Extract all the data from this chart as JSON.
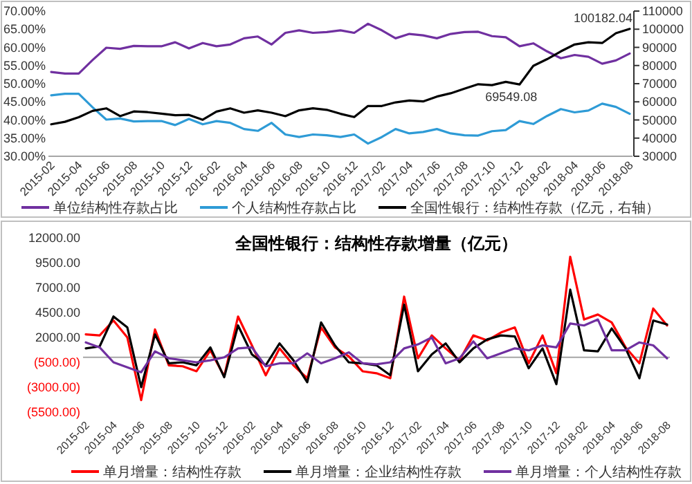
{
  "chart_data": [
    {
      "type": "line",
      "categories": [
        "2015-02",
        null,
        "2015-04",
        null,
        "2015-06",
        null,
        "2015-08",
        null,
        "2015-10",
        null,
        "2015-12",
        null,
        "2016-02",
        null,
        "2016-04",
        null,
        "2016-06",
        null,
        "2016-08",
        null,
        "2016-10",
        null,
        "2016-12",
        null,
        "2017-02",
        null,
        "2017-04",
        null,
        "2017-06",
        null,
        "2017-08",
        null,
        "2017-10",
        null,
        "2017-12",
        null,
        "2018-02",
        null,
        "2018-04",
        null,
        "2018-06",
        null,
        "2018-08"
      ],
      "series": [
        {
          "name": "单位结构性存款占比",
          "color": "#7030a0",
          "values": [
            53.2,
            52.8,
            52.8,
            56.5,
            59.9,
            59.6,
            60.4,
            60.3,
            60.3,
            61.4,
            59.7,
            61.2,
            60.3,
            60.8,
            62.5,
            63.0,
            60.8,
            64.0,
            64.7,
            64.0,
            64.2,
            64.7,
            64.0,
            66.5,
            64.7,
            62.5,
            63.7,
            63.3,
            62.5,
            63.7,
            64.2,
            64.3,
            63.1,
            62.8,
            60.3,
            61.1,
            58.9,
            57.0,
            57.9,
            57.4,
            55.5,
            56.4,
            58.3
          ]
        },
        {
          "name": "个人结构性存款占比",
          "color": "#2e9bd6",
          "values": [
            46.8,
            47.2,
            47.2,
            43.5,
            40.1,
            40.4,
            39.6,
            39.7,
            39.7,
            38.6,
            40.3,
            38.8,
            39.7,
            39.2,
            37.5,
            37.0,
            39.2,
            36.0,
            35.3,
            36.0,
            35.8,
            35.3,
            36.0,
            33.5,
            35.3,
            37.5,
            36.3,
            36.7,
            37.5,
            36.3,
            35.8,
            35.7,
            36.9,
            37.2,
            39.7,
            38.9,
            41.1,
            43.0,
            42.1,
            42.6,
            44.5,
            43.6,
            41.7
          ]
        },
        {
          "name": "全国性银行：结构性存款（亿元，右轴）",
          "color": "#000000",
          "axis": "y2",
          "values": [
            47600,
            49000,
            51500,
            55000,
            56400,
            52100,
            54700,
            54300,
            53500,
            52600,
            52800,
            50100,
            54600,
            56400,
            54000,
            55300,
            54000,
            52100,
            55300,
            56400,
            55600,
            53400,
            51600,
            57700,
            57700,
            59700,
            60700,
            60200,
            62900,
            64700,
            67200,
            69700,
            69200,
            71000,
            69549.08,
            79800,
            83500,
            87800,
            91600,
            92800,
            92400,
            97800,
            100182.04
          ],
          "value_labels": [
            null,
            null,
            null,
            null,
            null,
            null,
            null,
            null,
            null,
            null,
            null,
            null,
            null,
            null,
            null,
            null,
            null,
            null,
            null,
            null,
            null,
            null,
            null,
            null,
            null,
            null,
            null,
            null,
            null,
            null,
            null,
            null,
            null,
            null,
            "69549.08",
            null,
            null,
            null,
            null,
            null,
            null,
            null,
            "100182.04"
          ]
        }
      ],
      "ylim": [
        30,
        70
      ],
      "yticks": [
        {
          "value": 30,
          "label": "30.00%"
        },
        {
          "value": 35,
          "label": "35.00%"
        },
        {
          "value": 40,
          "label": "40.00%"
        },
        {
          "value": 45,
          "label": "45.00%"
        },
        {
          "value": 50,
          "label": "50.00%"
        },
        {
          "value": 55,
          "label": "55.00%"
        },
        {
          "value": 60,
          "label": "60.00%"
        },
        {
          "value": 65,
          "label": "65.00%"
        },
        {
          "value": 70,
          "label": "70.00%"
        }
      ],
      "y2lim": [
        30000,
        110000
      ],
      "y2ticks": [
        30000,
        40000,
        50000,
        60000,
        70000,
        80000,
        90000,
        100000,
        110000
      ],
      "legend": "bottom"
    },
    {
      "type": "line",
      "title": "全国性银行：结构性存款增量（亿元）",
      "categories": [
        "2015-02",
        null,
        "2015-04",
        null,
        "2015-06",
        null,
        "2015-08",
        null,
        "2015-10",
        null,
        "2015-12",
        null,
        "2016-02",
        null,
        "2016-04",
        null,
        "2016-06",
        null,
        "2016-08",
        null,
        "2016-10",
        null,
        "2016-12",
        null,
        "2017-02",
        null,
        "2017-04",
        null,
        "2017-06",
        null,
        "2017-08",
        null,
        "2017-10",
        null,
        "2017-12",
        null,
        "2018-02",
        null,
        "2018-04",
        null,
        "2018-06",
        null,
        "2018-08"
      ],
      "series": [
        {
          "name": "单月增量：结构性存款",
          "color": "#ff0000",
          "values": [
            2300,
            2200,
            3700,
            2000,
            -4300,
            2800,
            -800,
            -900,
            -1400,
            700,
            -1900,
            4100,
            1200,
            -1800,
            900,
            -800,
            -2100,
            3000,
            1000,
            100,
            -1400,
            -1600,
            -2100,
            6100,
            -100,
            2200,
            900,
            -300,
            2200,
            1700,
            2500,
            3000,
            -600,
            2200,
            -1600,
            10100,
            3800,
            4300,
            3500,
            1000,
            -600,
            4900,
            3200
          ]
        },
        {
          "name": "单月增量：企业结构性存款",
          "color": "#000000",
          "values": [
            900,
            1100,
            4100,
            3000,
            -3000,
            2300,
            -600,
            -500,
            -800,
            1000,
            -2000,
            3200,
            300,
            -800,
            1400,
            -300,
            -2500,
            3500,
            1200,
            -500,
            -600,
            -800,
            -1800,
            5300,
            -1400,
            300,
            1400,
            -500,
            900,
            1800,
            2200,
            2100,
            -1100,
            900,
            -2700,
            6800,
            700,
            600,
            2900,
            900,
            -2100,
            3700,
            3300
          ]
        },
        {
          "name": "单月增量：个人结构性存款",
          "color": "#7030a0",
          "values": [
            1500,
            1000,
            -500,
            -1000,
            -1500,
            600,
            -100,
            -300,
            -500,
            -300,
            0,
            900,
            1000,
            -900,
            -600,
            -600,
            400,
            -600,
            -100,
            500,
            -600,
            -700,
            -500,
            900,
            1300,
            2000,
            -600,
            -100,
            1600,
            -100,
            400,
            900,
            700,
            1200,
            1000,
            3400,
            3200,
            3800,
            700,
            700,
            1500,
            1200,
            -100
          ]
        }
      ],
      "ylim": [
        -5500,
        12000
      ],
      "yticks": [
        {
          "value": -5500,
          "label": "(5500.00)"
        },
        {
          "value": -3000,
          "label": "(3000.00)"
        },
        {
          "value": -500,
          "label": "(500.00)"
        },
        {
          "value": 2000,
          "label": "2000.00"
        },
        {
          "value": 4500,
          "label": "4500.00"
        },
        {
          "value": 7000,
          "label": "7000.00"
        },
        {
          "value": 9500,
          "label": "9500.00"
        },
        {
          "value": 12000,
          "label": "12000.00"
        }
      ],
      "legend": "bottom"
    }
  ]
}
